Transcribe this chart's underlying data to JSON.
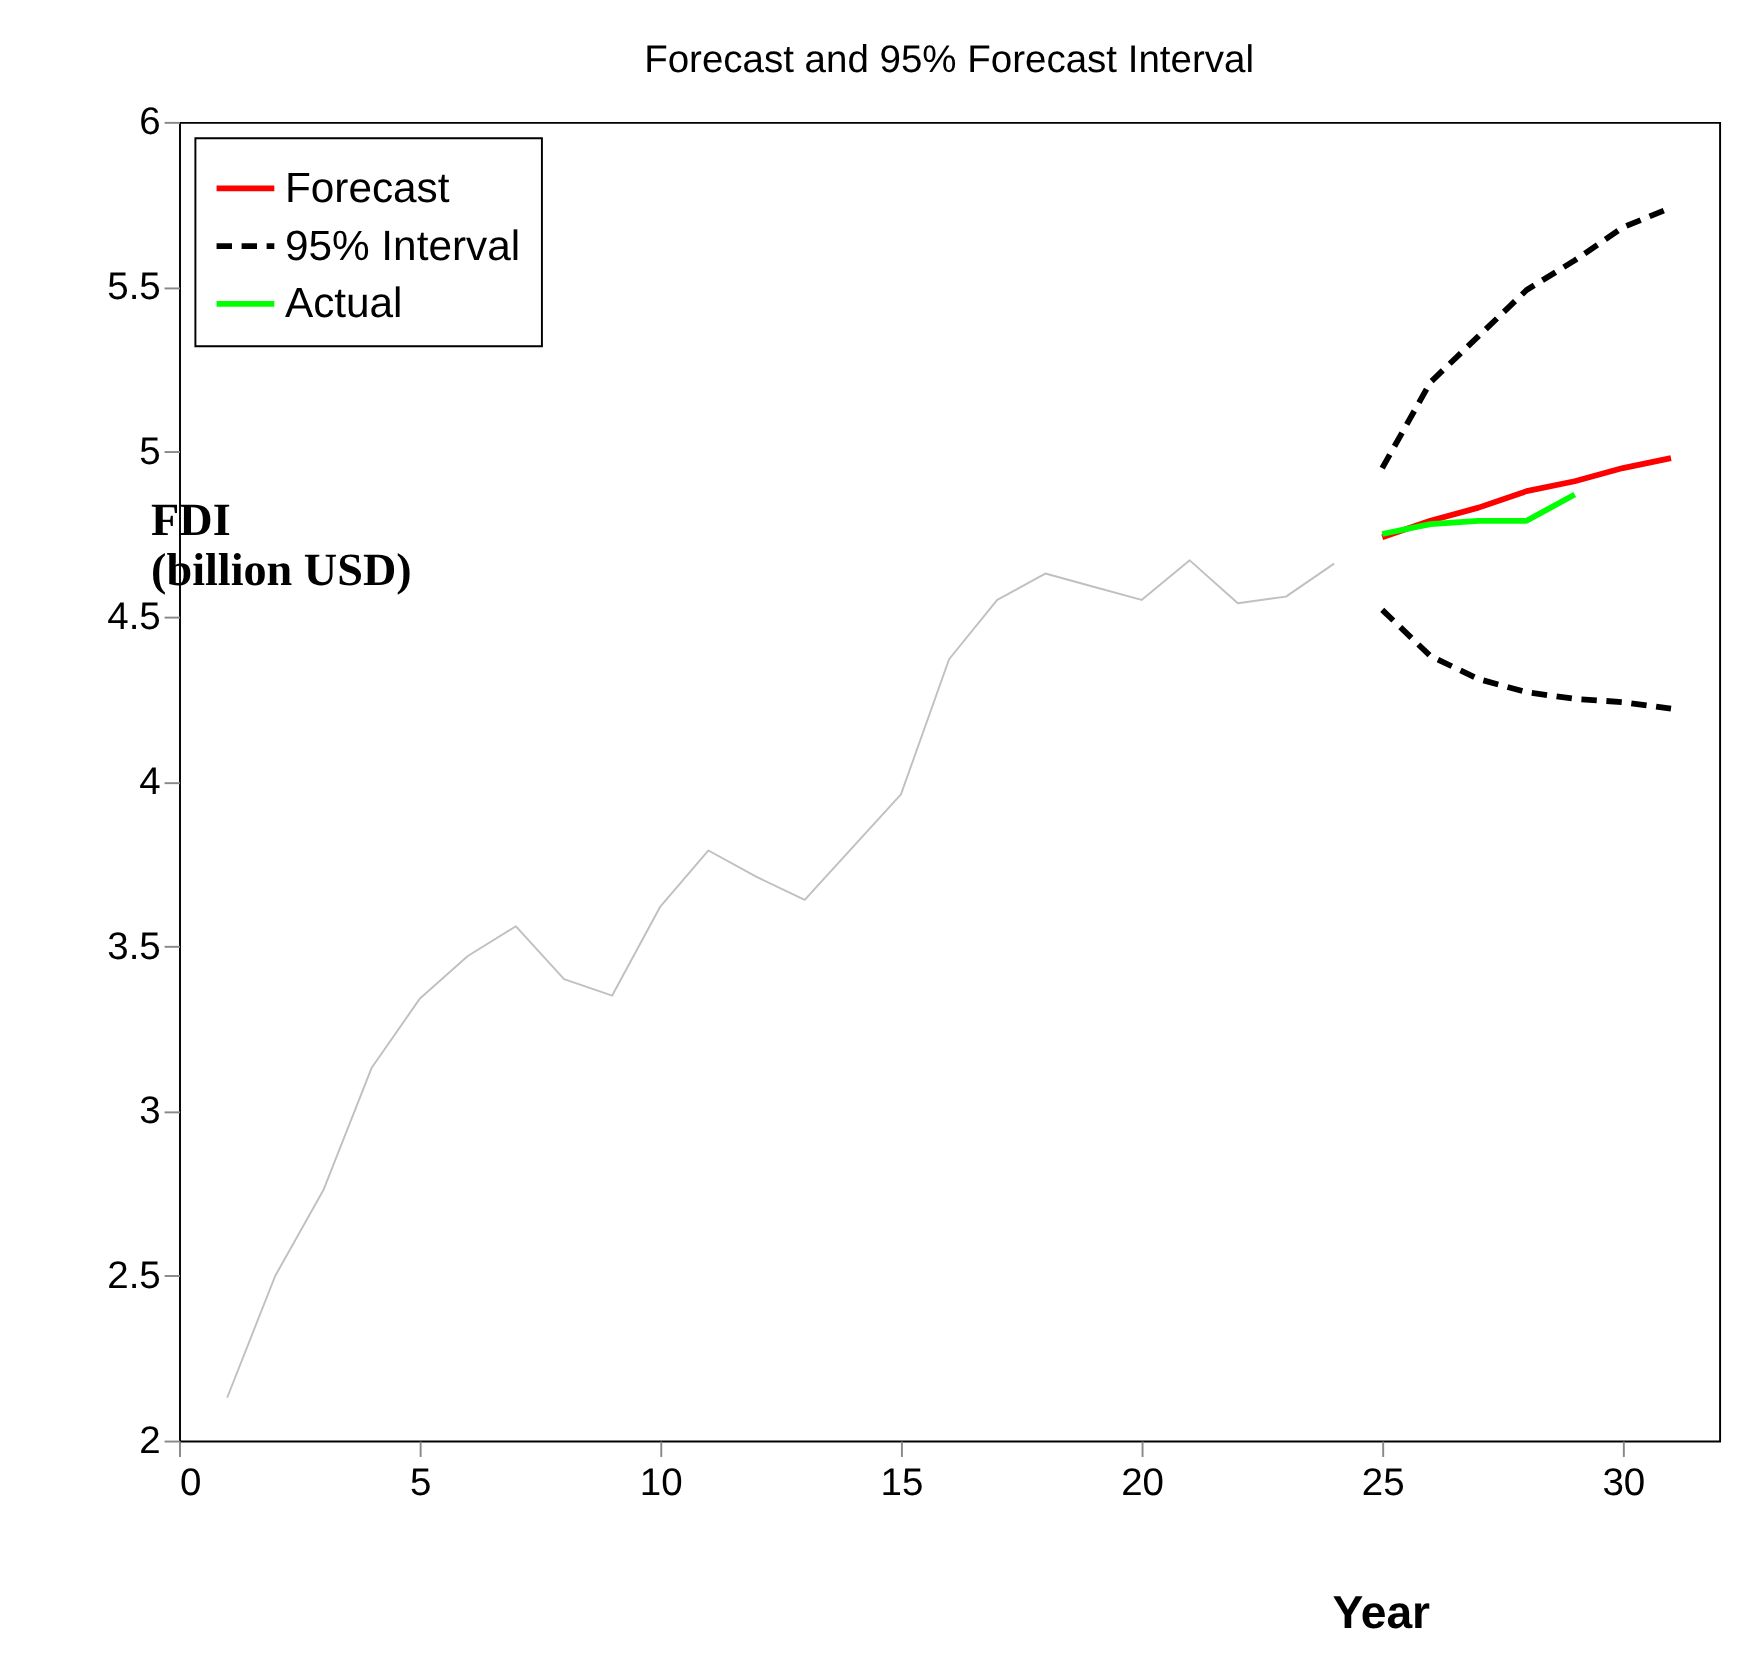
{
  "chart_data": {
    "type": "line",
    "title": "Forecast and 95% Forecast Interval",
    "xlabel": "Year",
    "ylabel": "FDI (billion USD)",
    "xlim": [
      0,
      32
    ],
    "xticks": [
      0,
      5,
      10,
      15,
      20,
      25,
      30
    ],
    "ylim": [
      2,
      6
    ],
    "yticks": [
      2,
      2.5,
      3,
      3.5,
      4,
      4.5,
      5,
      5.5,
      6
    ],
    "grid": false,
    "legend": "top left",
    "marker": "none",
    "series": [
      {
        "color": "#c0c0c0",
        "line_style": "solid",
        "x": [
          1,
          2,
          3,
          4,
          5,
          6,
          7,
          8,
          9,
          10,
          11,
          12,
          13,
          14,
          15,
          16,
          17,
          18,
          19,
          20,
          21,
          22,
          23,
          24
        ],
        "values": [
          2.13,
          2.5,
          2.76,
          3.13,
          3.34,
          3.47,
          3.56,
          3.4,
          3.35,
          3.62,
          3.79,
          3.71,
          3.64,
          3.8,
          3.96,
          4.37,
          4.55,
          4.63,
          4.59,
          4.55,
          4.67,
          4.54,
          4.56,
          4.66
        ]
      },
      {
        "name": "Forecast",
        "color": "#ff0000",
        "line_style": "solid",
        "x": [
          25,
          26,
          27,
          28,
          29,
          30,
          31
        ],
        "values": [
          4.74,
          4.79,
          4.83,
          4.88,
          4.91,
          4.95,
          4.98
        ]
      },
      {
        "name": "95% Interval",
        "color": "#000000",
        "line_style": "dashed",
        "x": [
          25,
          26,
          27,
          28,
          29,
          30,
          31
        ],
        "values": [
          4.95,
          5.21,
          5.35,
          5.49,
          5.58,
          5.68,
          5.74
        ]
      },
      {
        "color": "#000000",
        "line_style": "dashed",
        "x": [
          25,
          26,
          27,
          28,
          29,
          30,
          31
        ],
        "values": [
          4.52,
          4.38,
          4.31,
          4.27,
          4.25,
          4.24,
          4.22
        ]
      },
      {
        "name": "Actual",
        "color": "#00ff00",
        "line_style": "solid",
        "x": [
          25,
          26,
          27,
          28,
          29
        ],
        "values": [
          4.75,
          4.78,
          4.79,
          4.79,
          4.87
        ]
      }
    ]
  }
}
